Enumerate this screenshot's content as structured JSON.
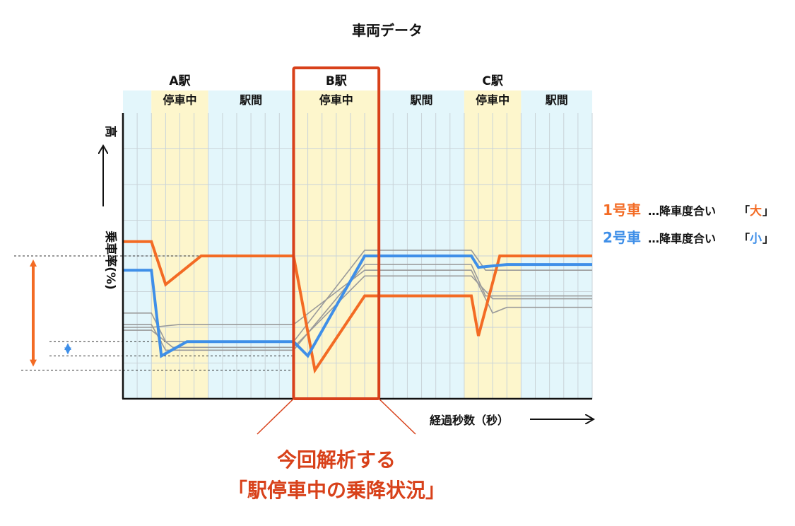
{
  "chart_data": {
    "type": "line",
    "title": "車両データ",
    "xlabel": "経過秒数（秒）",
    "ylabel": "乗車率(%)",
    "y_high_label": "高",
    "sections": [
      {
        "station": "A駅",
        "label": "停車中",
        "kind": "stop"
      },
      {
        "station": "",
        "label": "駅間",
        "kind": "between"
      },
      {
        "station": "B駅",
        "label": "停車中",
        "kind": "stop"
      },
      {
        "station": "",
        "label": "駅間",
        "kind": "between"
      },
      {
        "station": "C駅",
        "label": "停車中",
        "kind": "stop"
      },
      {
        "station": "",
        "label": "駅間",
        "kind": "between"
      }
    ],
    "x_range": [
      0,
      33
    ],
    "y_range": [
      0,
      100
    ],
    "grid": true,
    "series": [
      {
        "name": "1号車",
        "color": "#f36b24",
        "highlight": true,
        "points": [
          [
            0,
            55
          ],
          [
            2,
            55
          ],
          [
            3,
            40
          ],
          [
            5.5,
            50
          ],
          [
            12,
            50
          ],
          [
            13.5,
            10
          ],
          [
            17,
            36
          ],
          [
            24.5,
            36
          ],
          [
            25,
            22
          ],
          [
            26.5,
            50
          ],
          [
            33,
            50
          ]
        ]
      },
      {
        "name": "2号車",
        "color": "#3f8fe8",
        "highlight": true,
        "points": [
          [
            0,
            45
          ],
          [
            2,
            45
          ],
          [
            2.7,
            15
          ],
          [
            4.5,
            20
          ],
          [
            12,
            20
          ],
          [
            13,
            15
          ],
          [
            17,
            50
          ],
          [
            24.5,
            50
          ],
          [
            25,
            46
          ],
          [
            27,
            47
          ],
          [
            33,
            47
          ]
        ]
      },
      {
        "name": "",
        "color": "#9a9a9a",
        "highlight": false,
        "points": [
          [
            0,
            30
          ],
          [
            2,
            30
          ],
          [
            3,
            20
          ],
          [
            12,
            20
          ],
          [
            17,
            52
          ],
          [
            24.5,
            52
          ],
          [
            25.5,
            45
          ],
          [
            33,
            45
          ]
        ]
      },
      {
        "name": "",
        "color": "#9a9a9a",
        "highlight": false,
        "points": [
          [
            0,
            26
          ],
          [
            2,
            26
          ],
          [
            3,
            17
          ],
          [
            12,
            17
          ],
          [
            17,
            47
          ],
          [
            24.5,
            47
          ],
          [
            25.5,
            36
          ],
          [
            33,
            36
          ]
        ]
      },
      {
        "name": "",
        "color": "#9a9a9a",
        "highlight": false,
        "points": [
          [
            0,
            25
          ],
          [
            2,
            25
          ],
          [
            4,
            26
          ],
          [
            12,
            26
          ],
          [
            17,
            45
          ],
          [
            24.5,
            45
          ],
          [
            26,
            30
          ],
          [
            27,
            32
          ],
          [
            33,
            32
          ]
        ]
      },
      {
        "name": "",
        "color": "#9a9a9a",
        "highlight": false,
        "points": [
          [
            0,
            24
          ],
          [
            2,
            24
          ],
          [
            3.5,
            18
          ],
          [
            12,
            18
          ],
          [
            17,
            43
          ],
          [
            24.5,
            43
          ],
          [
            26,
            35
          ],
          [
            33,
            35
          ]
        ]
      }
    ],
    "legend": [
      {
        "series": "1号車",
        "text": "…降車度合い",
        "degree": "大",
        "color": "#f36b24"
      },
      {
        "series": "2号車",
        "text": "…降車度合い",
        "degree": "小",
        "color": "#3f8fe8"
      }
    ],
    "legend_placement": "right",
    "range_arrows": [
      {
        "color": "#f36b24",
        "from": 10,
        "to": 50
      },
      {
        "color": "#3f8fe8",
        "from": 15,
        "to": 20
      }
    ],
    "highlight_box": {
      "section_index": 2,
      "color": "#d8411a"
    },
    "annotation": {
      "line1": "今回解析する",
      "line2": "「駅停車中の乗降状況」",
      "color": "#d8411a"
    }
  }
}
